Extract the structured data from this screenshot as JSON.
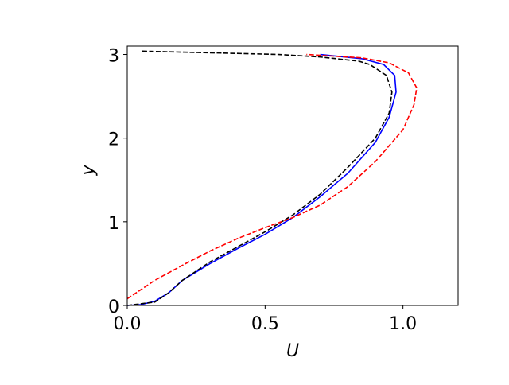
{
  "chart_data": {
    "type": "line",
    "x_label": "U",
    "y_label": "y",
    "xlim": [
      0,
      1.2
    ],
    "ylim": [
      0,
      3.1
    ],
    "xticks": [
      {
        "value": 0,
        "label": "0.0"
      },
      {
        "value": 0.5,
        "label": "0.5"
      },
      {
        "value": 1,
        "label": "1.0"
      }
    ],
    "yticks": [
      0,
      1,
      2,
      3
    ],
    "grid": false,
    "series": [
      {
        "color": "#0000ff",
        "linestyle": "solid",
        "x": [
          0,
          0.05,
          0.1,
          0.15,
          0.2,
          0.3,
          0.4,
          0.5,
          0.6,
          0.7,
          0.8,
          0.9,
          0.95,
          0.975,
          0.97,
          0.93,
          0.85,
          0.7
        ],
        "values": [
          0,
          0.01,
          0.05,
          0.15,
          0.3,
          0.5,
          0.68,
          0.85,
          1.05,
          1.3,
          1.58,
          1.95,
          2.25,
          2.55,
          2.75,
          2.88,
          2.95,
          3.0
        ]
      },
      {
        "color": "#000000",
        "linestyle": "dashed",
        "x": [
          0,
          0.1,
          0.15,
          0.2,
          0.3,
          0.4,
          0.5,
          0.6,
          0.7,
          0.8,
          0.9,
          0.95,
          0.96,
          0.94,
          0.88,
          0.84,
          0.7,
          0.55,
          0.3,
          0.05
        ],
        "values": [
          0,
          0.04,
          0.15,
          0.3,
          0.52,
          0.7,
          0.88,
          1.08,
          1.33,
          1.65,
          2.0,
          2.3,
          2.55,
          2.75,
          2.88,
          2.92,
          2.97,
          3.0,
          3.02,
          3.04
        ]
      },
      {
        "color": "#ff0000",
        "linestyle": "dashed",
        "x": [
          0,
          0.1,
          0.2,
          0.3,
          0.4,
          0.5,
          0.6,
          0.7,
          0.8,
          0.9,
          1.0,
          1.04,
          1.05,
          1.02,
          0.95,
          0.85,
          0.65
        ],
        "values": [
          0.08,
          0.3,
          0.48,
          0.65,
          0.8,
          0.93,
          1.05,
          1.2,
          1.42,
          1.72,
          2.1,
          2.4,
          2.6,
          2.78,
          2.9,
          2.96,
          3.0
        ]
      }
    ]
  }
}
